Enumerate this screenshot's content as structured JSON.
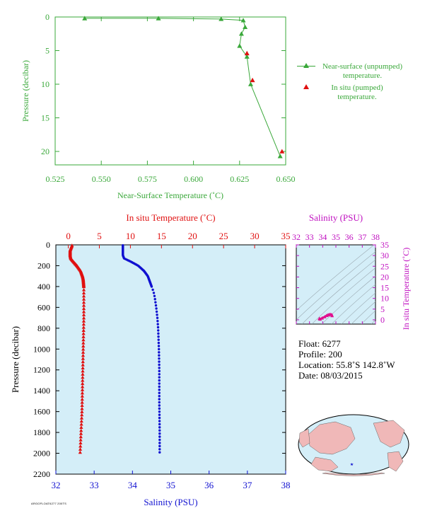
{
  "chart_data": [
    {
      "type": "line",
      "xlabel": "Near-Surface Temperature (˚C)",
      "ylabel": "Pressure (decibar)",
      "xlim": [
        0.525,
        0.65
      ],
      "ylim": [
        0,
        22
      ],
      "y_inverted": true,
      "xticks": [
        "0.525",
        "0.550",
        "0.575",
        "0.600",
        "0.625",
        "0.650"
      ],
      "yticks": [
        "0",
        "5",
        "10",
        "15",
        "20"
      ],
      "legend_position": "right",
      "series": [
        {
          "name": "Near-surface (unpumped) temperature.",
          "color": "#3aa83a",
          "marker": "triangle",
          "points": [
            [
              0.541,
              0.2
            ],
            [
              0.581,
              0.2
            ],
            [
              0.615,
              0.3
            ],
            [
              0.627,
              0.5
            ],
            [
              0.628,
              1.5
            ],
            [
              0.626,
              2.5
            ],
            [
              0.625,
              4.3
            ],
            [
              0.629,
              5.9
            ],
            [
              0.631,
              10.0
            ],
            [
              0.647,
              20.7
            ]
          ]
        },
        {
          "name": "In situ (pumped) temperature.",
          "color": "#e01010",
          "marker": "triangle",
          "points": [
            [
              0.629,
              5.4
            ],
            [
              0.632,
              9.4
            ],
            [
              0.648,
              20.0
            ]
          ]
        }
      ]
    },
    {
      "type": "scatter",
      "top_axis_label": "In situ Temperature (˚C)",
      "bottom_axis_label": "Salinity (PSU)",
      "ylabel": "Pressure (decibar)",
      "temperature_lim": [
        -2,
        35
      ],
      "salinity_lim": [
        32,
        38
      ],
      "pressure_lim": [
        0,
        2200
      ],
      "y_inverted": true,
      "temperature_ticks": [
        "0",
        "5",
        "10",
        "15",
        "20",
        "25",
        "30",
        "35"
      ],
      "salinity_ticks": [
        "32",
        "33",
        "34",
        "35",
        "36",
        "37",
        "38"
      ],
      "pressure_ticks": [
        "0",
        "200",
        "400",
        "600",
        "800",
        "1000",
        "1200",
        "1400",
        "1600",
        "1800",
        "2000",
        "2200"
      ],
      "temperature_profile": {
        "color": "#e01010",
        "pressure": [
          5,
          50,
          100,
          130,
          160,
          200,
          250,
          300,
          330,
          400,
          500,
          700,
          1000,
          1300,
          1600,
          2000
        ],
        "temperature": [
          0.6,
          0.3,
          0.3,
          0.4,
          0.8,
          1.4,
          2.0,
          2.3,
          2.4,
          2.5,
          2.5,
          2.5,
          2.4,
          2.3,
          2.2,
          1.9
        ]
      },
      "salinity_profile": {
        "color": "#1010d0",
        "pressure": [
          5,
          100,
          130,
          160,
          200,
          250,
          300,
          350,
          400,
          450,
          500,
          600,
          700,
          800,
          1000,
          1200,
          1500,
          1800,
          2000
        ],
        "salinity": [
          33.75,
          33.75,
          33.78,
          33.95,
          34.15,
          34.3,
          34.4,
          34.45,
          34.5,
          34.55,
          34.58,
          34.62,
          34.65,
          34.67,
          34.69,
          34.7,
          34.7,
          34.71,
          34.71
        ]
      }
    },
    {
      "type": "scatter",
      "title": "Salinity (PSU)",
      "ylabel": "In situ Temperature (˚C)",
      "xlim": [
        32,
        38
      ],
      "ylim": [
        -2,
        35
      ],
      "xticks": [
        "32",
        "33",
        "34",
        "35",
        "36",
        "37",
        "38"
      ],
      "yticks": [
        "0",
        "5",
        "10",
        "15",
        "20",
        "25",
        "30",
        "35"
      ],
      "color": "#e0108f",
      "points": [
        [
          33.75,
          0.6
        ],
        [
          33.8,
          0.3
        ],
        [
          33.95,
          0.8
        ],
        [
          34.15,
          1.4
        ],
        [
          34.3,
          2.0
        ],
        [
          34.4,
          2.3
        ],
        [
          34.5,
          2.5
        ],
        [
          34.6,
          2.5
        ],
        [
          34.68,
          2.4
        ],
        [
          34.71,
          1.9
        ]
      ]
    }
  ],
  "float_info": {
    "float": "Float:  6277",
    "profile": "Profile:  200",
    "location": "Location:  55.8˚S  142.8˚W",
    "date": "Date:  08/03/2015"
  },
  "footer_tag": "ARGOFLOAT6277 200TS",
  "colors": {
    "green": "#3aa83a",
    "red": "#e01010",
    "blue": "#1010d0",
    "magenta": "#c010c0",
    "panel_bg": "#d4eef8",
    "map_land": "#f0b8b8",
    "map_sea": "#d4eef8"
  }
}
